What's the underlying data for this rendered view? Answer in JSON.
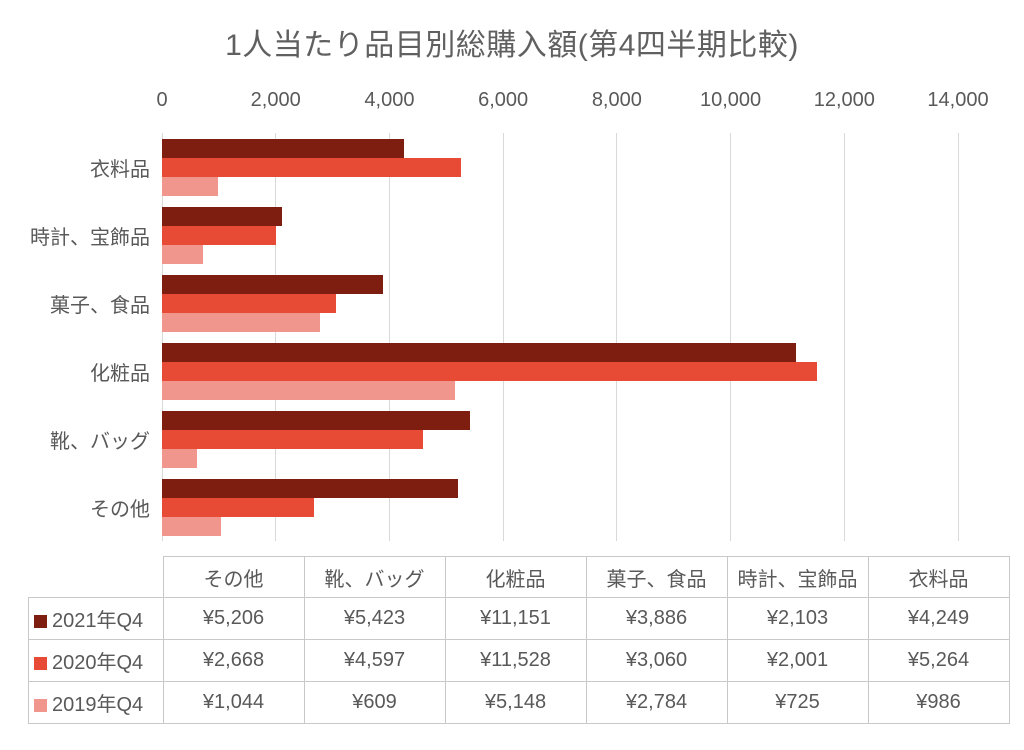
{
  "chart_data": {
    "type": "bar",
    "orientation": "horizontal",
    "title": "1人当たり品目別総購入額(第4四半期比較)",
    "categories": [
      "衣料品",
      "時計、宝飾品",
      "菓子、食品",
      "化粧品",
      "靴、バッグ",
      "その他"
    ],
    "series": [
      {
        "name": "2021年Q4",
        "color": "#7E1E10",
        "values": [
          4249,
          2103,
          3886,
          11151,
          5423,
          5206
        ]
      },
      {
        "name": "2020年Q4",
        "color": "#E74B35",
        "values": [
          5264,
          2001,
          3060,
          11528,
          4597,
          2668
        ]
      },
      {
        "name": "2019年Q4",
        "color": "#F0968C",
        "values": [
          986,
          725,
          2784,
          5148,
          609,
          1044
        ]
      }
    ],
    "xlim": [
      0,
      14000
    ],
    "x_ticks": [
      {
        "value": 0,
        "label": "0"
      },
      {
        "value": 2000,
        "label": "2,000"
      },
      {
        "value": 4000,
        "label": "4,000"
      },
      {
        "value": 6000,
        "label": "6,000"
      },
      {
        "value": 8000,
        "label": "8,000"
      },
      {
        "value": 10000,
        "label": "10,000"
      },
      {
        "value": 12000,
        "label": "12,000"
      },
      {
        "value": 14000,
        "label": "14,000"
      }
    ],
    "grid": true,
    "legend_position": "data-table-rows"
  },
  "data_table": {
    "columns": [
      "その他",
      "靴、バッグ",
      "化粧品",
      "菓子、食品",
      "時計、宝飾品",
      "衣料品"
    ],
    "rows": [
      {
        "name": "2021年Q4",
        "swatch_color": "#7E1E10",
        "values": [
          "¥5,206",
          "¥5,423",
          "¥11,151",
          "¥3,886",
          "¥2,103",
          "¥4,249"
        ]
      },
      {
        "name": "2020年Q4",
        "swatch_color": "#E74B35",
        "values": [
          "¥2,668",
          "¥4,597",
          "¥11,528",
          "¥3,060",
          "¥2,001",
          "¥5,264"
        ]
      },
      {
        "name": "2019年Q4",
        "swatch_color": "#F0968C",
        "values": [
          "¥1,044",
          "¥609",
          "¥5,148",
          "¥2,784",
          "¥725",
          "¥986"
        ]
      }
    ]
  },
  "colors": {
    "text": "#595959",
    "title_text": "#606060",
    "gridline": "#D9D9D9",
    "table_border": "#C9C9C9",
    "background": "#FFFFFF"
  }
}
